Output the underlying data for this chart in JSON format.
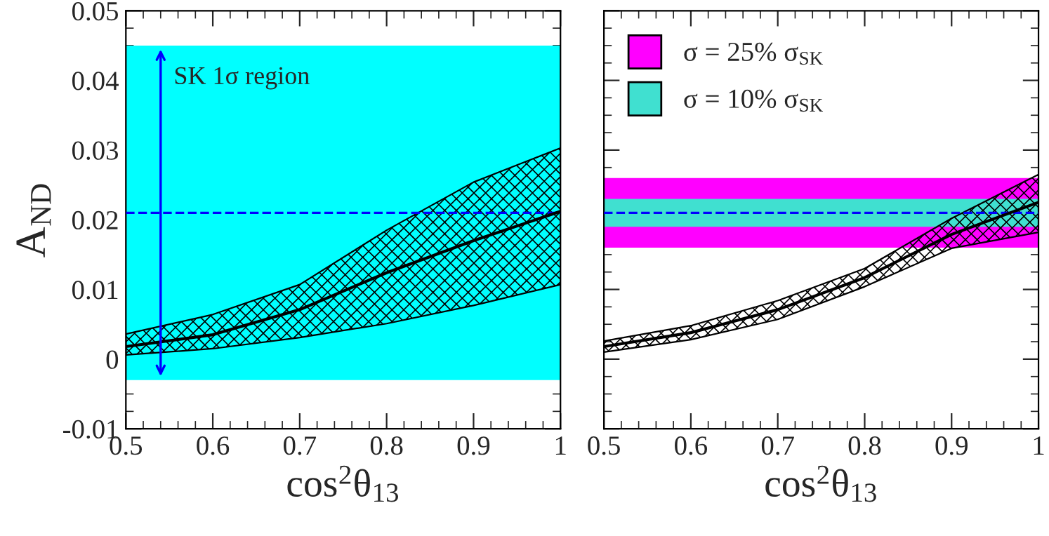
{
  "chart_data": [
    {
      "type": "line",
      "xlabel": "cos$^{2}$θ$_{13}$",
      "ylabel": "A$_{ND}$",
      "x": [
        0.5,
        0.6,
        0.7,
        0.8,
        0.9,
        1.0
      ],
      "series": [
        {
          "color": "#000000",
          "values": [
            0.0018,
            0.0035,
            0.0071,
            0.0124,
            0.017,
            0.0212
          ],
          "lower": [
            0.0006,
            0.0015,
            0.0031,
            0.0051,
            0.0077,
            0.0107
          ],
          "upper": [
            0.0036,
            0.0064,
            0.0107,
            0.0185,
            0.0254,
            0.0303
          ]
        }
      ],
      "xlim": [
        0.5,
        1
      ],
      "ylim": [
        -0.01,
        0.05
      ],
      "xticks": [
        0.5,
        0.6,
        0.7,
        0.8,
        0.9,
        1
      ],
      "yticks": [
        -0.01,
        0,
        0.01,
        0.02,
        0.03,
        0.04,
        0.05
      ],
      "bands": [
        {
          "axis": "y",
          "from": -0.003,
          "to": 0.045,
          "label": "SK 1σ region",
          "color": "#00ffff"
        }
      ],
      "ref_lines": [
        {
          "axis": "y",
          "value": 0.021,
          "color": "#0000ff",
          "line_style": "dashed"
        }
      ],
      "grid": false,
      "marker": "none",
      "line_style": "solid"
    },
    {
      "type": "line",
      "xlabel": "cos$^{2}$θ$_{13}$",
      "x": [
        0.5,
        0.6,
        0.7,
        0.8,
        0.9,
        1.0
      ],
      "series": [
        {
          "color": "#000000",
          "values": [
            0.0018,
            0.0038,
            0.0071,
            0.0117,
            0.0179,
            0.0225
          ],
          "lower": [
            0.001,
            0.0028,
            0.0057,
            0.0104,
            0.0159,
            0.0182
          ],
          "upper": [
            0.0026,
            0.0048,
            0.0084,
            0.013,
            0.0202,
            0.0265
          ]
        }
      ],
      "xlim": [
        0.5,
        1
      ],
      "ylim": [
        -0.01,
        0.05
      ],
      "xticks": [
        0.5,
        0.6,
        0.7,
        0.8,
        0.9,
        1
      ],
      "yticks": [
        -0.01,
        0,
        0.01,
        0.02,
        0.03,
        0.04,
        0.05
      ],
      "tick_labels": "x",
      "bands": [
        {
          "axis": "y",
          "from": 0.016,
          "to": 0.026,
          "label": "σ = 25% σ$_{SK}$",
          "color": "#ff00ff"
        },
        {
          "axis": "y",
          "from": 0.019,
          "to": 0.023,
          "label": "σ = 10% σ$_{SK}$",
          "color": "#40e0d0"
        }
      ],
      "ref_lines": [
        {
          "axis": "y",
          "value": 0.021,
          "color": "#0000ff",
          "line_style": "dashed"
        }
      ],
      "legend": "top left",
      "grid": false,
      "marker": "none",
      "line_style": "solid"
    }
  ]
}
